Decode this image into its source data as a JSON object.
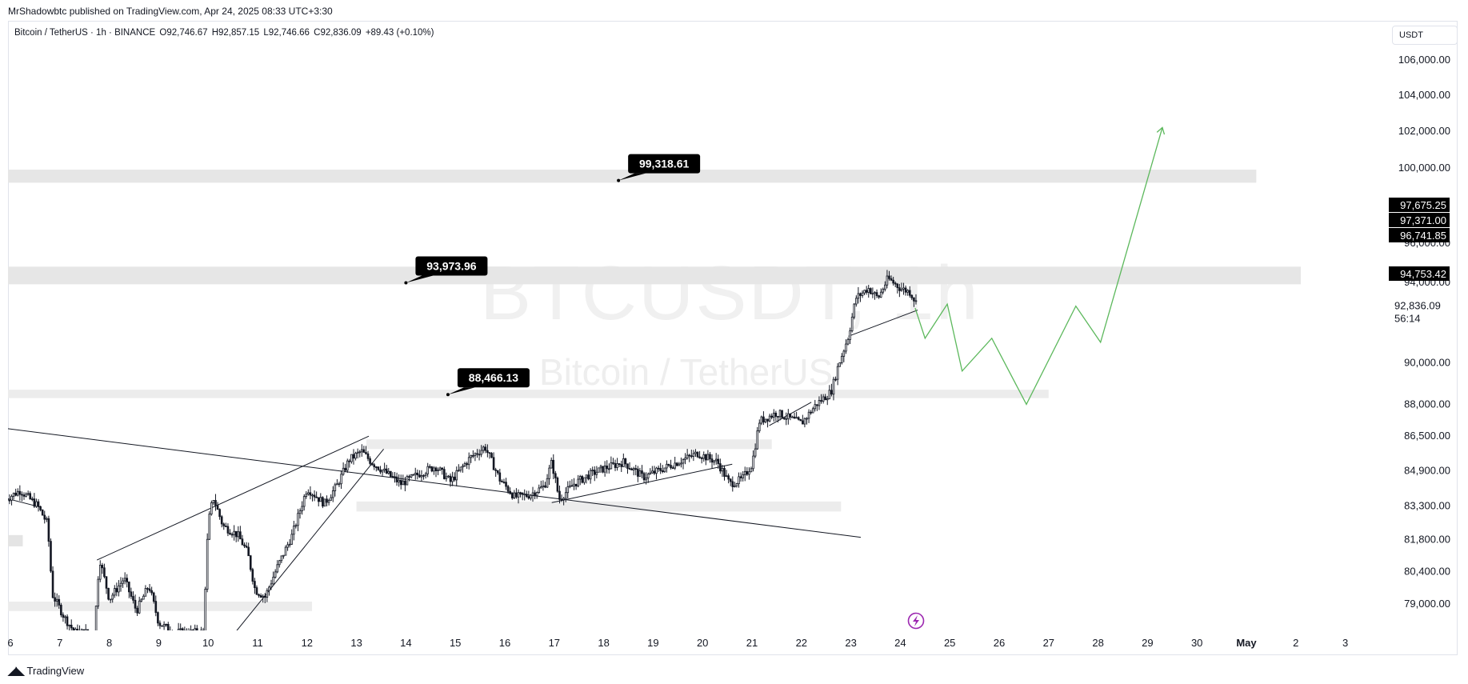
{
  "attribution": "MrShadowbtc published on TradingView.com, Apr 24, 2025 08:33 UTC+3:30",
  "legend": {
    "symbol": "Bitcoin / TetherUS · 1h · BINANCE",
    "open": "O92,746.67",
    "high": "H92,857.15",
    "low": "L92,746.66",
    "close": "C92,836.09",
    "change": "+89.43 (+0.10%)"
  },
  "currency": "USDT",
  "watermark": {
    "main": "BTCUSDT, 1h",
    "sub": "Bitcoin / TetherUS"
  },
  "footer": "TradingView",
  "countdown": "56:14",
  "chart_data": {
    "type": "candlestick",
    "ylim": [
      77800,
      107500
    ],
    "price_ticks": [
      {
        "label": "106,000.00",
        "value": 106000
      },
      {
        "label": "104,000.00",
        "value": 104000
      },
      {
        "label": "102,000.00",
        "value": 102000
      },
      {
        "label": "100,000.00",
        "value": 100000
      },
      {
        "label": "96,000.00",
        "value": 96000
      },
      {
        "label": "94,000.00",
        "value": 94000
      },
      {
        "label": "90,000.00",
        "value": 90000
      },
      {
        "label": "88,000.00",
        "value": 88000
      },
      {
        "label": "86,500.00",
        "value": 86500
      },
      {
        "label": "84,900.00",
        "value": 84900
      },
      {
        "label": "83,300.00",
        "value": 83300
      },
      {
        "label": "81,800.00",
        "value": 81800
      },
      {
        "label": "80,400.00",
        "value": 80400
      },
      {
        "label": "79,000.00",
        "value": 79000
      }
    ],
    "price_badges": [
      {
        "label": "97,675.25",
        "value": 97675.25,
        "color": "#000000"
      },
      {
        "label": "97,371.00",
        "value": 97371,
        "color": "#000000"
      },
      {
        "label": "96,741.85",
        "value": 96741.85,
        "color": "#000000"
      },
      {
        "label": "94,753.42",
        "value": 94753.42,
        "color": "#000000"
      }
    ],
    "last_price": {
      "label": "92,836.09",
      "value": 92836.09
    },
    "time_ticks": [
      {
        "label": "6",
        "t": 0
      },
      {
        "label": "7",
        "t": 1
      },
      {
        "label": "8",
        "t": 2
      },
      {
        "label": "9",
        "t": 3
      },
      {
        "label": "10",
        "t": 4
      },
      {
        "label": "11",
        "t": 5
      },
      {
        "label": "12",
        "t": 6
      },
      {
        "label": "13",
        "t": 7
      },
      {
        "label": "14",
        "t": 8
      },
      {
        "label": "15",
        "t": 9
      },
      {
        "label": "16",
        "t": 10
      },
      {
        "label": "17",
        "t": 11
      },
      {
        "label": "18",
        "t": 12
      },
      {
        "label": "19",
        "t": 13
      },
      {
        "label": "20",
        "t": 14
      },
      {
        "label": "21",
        "t": 15
      },
      {
        "label": "22",
        "t": 16
      },
      {
        "label": "23",
        "t": 17
      },
      {
        "label": "24",
        "t": 18
      },
      {
        "label": "25",
        "t": 19
      },
      {
        "label": "26",
        "t": 20
      },
      {
        "label": "27",
        "t": 21
      },
      {
        "label": "28",
        "t": 22
      },
      {
        "label": "29",
        "t": 23
      },
      {
        "label": "30",
        "t": 24
      },
      {
        "label": "May",
        "t": 25
      },
      {
        "label": "2",
        "t": 26
      },
      {
        "label": "3",
        "t": 27
      }
    ],
    "zones": [
      {
        "t0": -0.1,
        "t1": 25.2,
        "y0": 99200,
        "y1": 99900,
        "color": "#e6e6e6"
      },
      {
        "t0": -0.1,
        "t1": 26.1,
        "y0": 93900,
        "y1": 94800,
        "color": "#e6e6e6"
      },
      {
        "t0": -0.1,
        "t1": 21.0,
        "y0": 88300,
        "y1": 88700,
        "color": "#ececec"
      },
      {
        "t0": 7.2,
        "t1": 15.4,
        "y0": 85900,
        "y1": 86350,
        "color": "#ececec"
      },
      {
        "t0": 7.0,
        "t1": 16.8,
        "y0": 83050,
        "y1": 83500,
        "color": "#ececec"
      },
      {
        "t0": -0.1,
        "t1": 0.25,
        "y0": 81500,
        "y1": 82000,
        "color": "#e4e4e4"
      },
      {
        "t0": -0.1,
        "t1": 6.1,
        "y0": 78700,
        "y1": 79100,
        "color": "#ececec"
      }
    ],
    "callouts": [
      {
        "label": "99,318.61",
        "t": 12.3,
        "value": 99318.61
      },
      {
        "label": "93,973.96",
        "t": 8.0,
        "value": 93973.96
      },
      {
        "label": "88,466.13",
        "t": 8.85,
        "value": 88466.13
      }
    ],
    "trendlines": [
      {
        "t0": -0.05,
        "v0": 86850,
        "t1": 17.2,
        "v1": 81900
      },
      {
        "t0": 1.75,
        "v0": 80900,
        "t1": 7.25,
        "v1": 86500
      },
      {
        "t0": 4.55,
        "v0": 77800,
        "t1": 7.55,
        "v1": 85900
      },
      {
        "t0": 10.95,
        "v0": 83450,
        "t1": 14.6,
        "v1": 85200
      },
      {
        "t0": -0.1,
        "v0": 83650,
        "t1": 0.6,
        "v1": 83250
      },
      {
        "t0": 15.35,
        "v0": 87000,
        "t1": 16.2,
        "v1": 88100
      },
      {
        "t0": 16.95,
        "v0": 91300,
        "t1": 18.35,
        "v1": 92600
      }
    ],
    "projection": {
      "color": "#5cb85c",
      "points": [
        {
          "t": 18.3,
          "v": 92700
        },
        {
          "t": 18.5,
          "v": 91200
        },
        {
          "t": 18.95,
          "v": 92900
        },
        {
          "t": 19.25,
          "v": 89600
        },
        {
          "t": 19.85,
          "v": 91200
        },
        {
          "t": 20.55,
          "v": 88000
        },
        {
          "t": 21.55,
          "v": 92800
        },
        {
          "t": 22.05,
          "v": 91000
        },
        {
          "t": 23.3,
          "v": 102200
        }
      ]
    },
    "candle_path": [
      {
        "t": -0.1,
        "v": 83600
      },
      {
        "t": 0.2,
        "v": 84000
      },
      {
        "t": 0.55,
        "v": 83300
      },
      {
        "t": 0.75,
        "v": 82500
      },
      {
        "t": 0.85,
        "v": 79400
      },
      {
        "t": 1.1,
        "v": 78400
      },
      {
        "t": 1.3,
        "v": 77800
      },
      {
        "t": 1.7,
        "v": 77800
      },
      {
        "t": 1.8,
        "v": 81000
      },
      {
        "t": 2.0,
        "v": 79200
      },
      {
        "t": 2.3,
        "v": 80100
      },
      {
        "t": 2.55,
        "v": 78700
      },
      {
        "t": 2.8,
        "v": 79800
      },
      {
        "t": 3.0,
        "v": 78200
      },
      {
        "t": 3.3,
        "v": 77800
      },
      {
        "t": 3.9,
        "v": 77800
      },
      {
        "t": 4.0,
        "v": 82500
      },
      {
        "t": 4.1,
        "v": 83700
      },
      {
        "t": 4.3,
        "v": 82400
      },
      {
        "t": 4.6,
        "v": 82000
      },
      {
        "t": 4.8,
        "v": 81200
      },
      {
        "t": 4.95,
        "v": 79600
      },
      {
        "t": 5.15,
        "v": 79300
      },
      {
        "t": 5.4,
        "v": 80600
      },
      {
        "t": 5.7,
        "v": 82000
      },
      {
        "t": 6.0,
        "v": 84100
      },
      {
        "t": 6.35,
        "v": 83400
      },
      {
        "t": 6.6,
        "v": 84200
      },
      {
        "t": 6.85,
        "v": 85400
      },
      {
        "t": 7.1,
        "v": 85800
      },
      {
        "t": 7.3,
        "v": 85300
      },
      {
        "t": 7.6,
        "v": 84800
      },
      {
        "t": 7.9,
        "v": 84300
      },
      {
        "t": 8.3,
        "v": 84800
      },
      {
        "t": 8.6,
        "v": 85100
      },
      {
        "t": 8.9,
        "v": 84400
      },
      {
        "t": 9.3,
        "v": 85500
      },
      {
        "t": 9.6,
        "v": 86000
      },
      {
        "t": 9.9,
        "v": 84500
      },
      {
        "t": 10.2,
        "v": 83700
      },
      {
        "t": 10.5,
        "v": 83800
      },
      {
        "t": 10.8,
        "v": 84200
      },
      {
        "t": 10.95,
        "v": 85300
      },
      {
        "t": 11.1,
        "v": 83600
      },
      {
        "t": 11.4,
        "v": 84300
      },
      {
        "t": 11.7,
        "v": 84700
      },
      {
        "t": 12.0,
        "v": 85000
      },
      {
        "t": 12.4,
        "v": 85300
      },
      {
        "t": 12.8,
        "v": 84600
      },
      {
        "t": 13.2,
        "v": 85000
      },
      {
        "t": 13.6,
        "v": 85400
      },
      {
        "t": 13.9,
        "v": 85700
      },
      {
        "t": 14.3,
        "v": 85300
      },
      {
        "t": 14.55,
        "v": 84300
      },
      {
        "t": 14.8,
        "v": 84500
      },
      {
        "t": 15.0,
        "v": 85200
      },
      {
        "t": 15.15,
        "v": 87200
      },
      {
        "t": 15.5,
        "v": 87600
      },
      {
        "t": 15.8,
        "v": 87300
      },
      {
        "t": 16.0,
        "v": 87100
      },
      {
        "t": 16.3,
        "v": 88000
      },
      {
        "t": 16.6,
        "v": 88600
      },
      {
        "t": 16.75,
        "v": 89900
      },
      {
        "t": 16.95,
        "v": 91300
      },
      {
        "t": 17.1,
        "v": 93200
      },
      {
        "t": 17.35,
        "v": 93700
      },
      {
        "t": 17.55,
        "v": 93200
      },
      {
        "t": 17.75,
        "v": 94200
      },
      {
        "t": 18.0,
        "v": 93700
      },
      {
        "t": 18.2,
        "v": 93500
      },
      {
        "t": 18.35,
        "v": 92836
      }
    ]
  }
}
